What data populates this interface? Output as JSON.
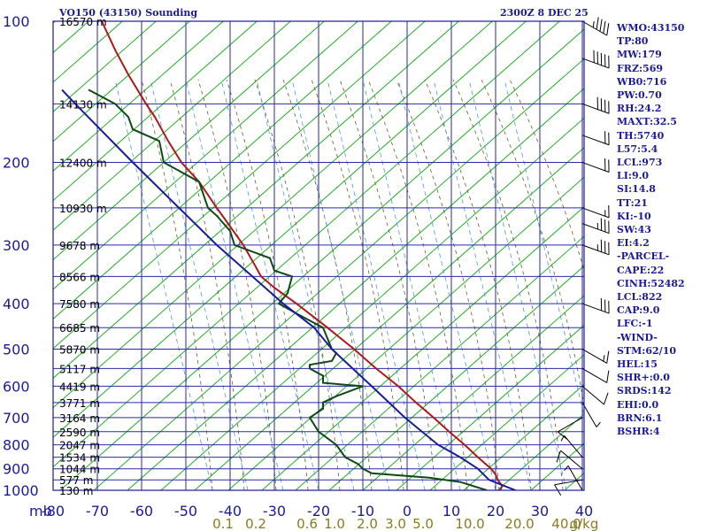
{
  "chart_data": {
    "type": "line",
    "title": "VO150 (43150) Sounding",
    "valid_time": "2300Z  8 DEC 25",
    "y_axis": {
      "unit": "mb",
      "ticks": [
        100,
        200,
        300,
        400,
        500,
        600,
        700,
        800,
        900,
        1000
      ],
      "scale": "log",
      "range": [
        100,
        1000
      ]
    },
    "x_axis": {
      "ticks": [
        -80,
        -70,
        -60,
        -50,
        -40,
        -30,
        -20,
        -10,
        0,
        10,
        20,
        30,
        40
      ],
      "range": [
        -80,
        40
      ]
    },
    "height_labels": [
      {
        "p": 100,
        "text": "16570 m"
      },
      {
        "p": 150,
        "text": "14130 m"
      },
      {
        "p": 200,
        "text": "12400 m"
      },
      {
        "p": 250,
        "text": "10930 m"
      },
      {
        "p": 300,
        "text": "9678 m"
      },
      {
        "p": 350,
        "text": "8566 m"
      },
      {
        "p": 400,
        "text": "7580 m"
      },
      {
        "p": 450,
        "text": "6685 m"
      },
      {
        "p": 500,
        "text": "5870 m"
      },
      {
        "p": 550,
        "text": "5117 m"
      },
      {
        "p": 600,
        "text": "4419 m"
      },
      {
        "p": 650,
        "text": "3771 m"
      },
      {
        "p": 700,
        "text": "3164 m"
      },
      {
        "p": 750,
        "text": "2590 m"
      },
      {
        "p": 800,
        "text": "2047 m"
      },
      {
        "p": 850,
        "text": "1534 m"
      },
      {
        "p": 900,
        "text": "1044 m"
      },
      {
        "p": 950,
        "text": "577 m"
      },
      {
        "p": 1000,
        "text": "130 m"
      }
    ],
    "mixing_ratio_labels": [
      "0.1",
      "0.2",
      "0.6",
      "1.0",
      "2.0",
      "3.0",
      "5.0",
      "10.0",
      "20.0",
      "40.0",
      "g/kg"
    ],
    "series": [
      {
        "kind": "temperature",
        "color": "#b01818",
        "points": [
          [
            1000,
            21
          ],
          [
            980,
            21.5
          ],
          [
            950,
            20.5
          ],
          [
            925,
            20
          ],
          [
            900,
            19
          ],
          [
            850,
            16
          ],
          [
            800,
            13
          ],
          [
            750,
            9.5
          ],
          [
            700,
            6
          ],
          [
            650,
            2
          ],
          [
            600,
            -2
          ],
          [
            550,
            -7
          ],
          [
            500,
            -12
          ],
          [
            450,
            -18
          ],
          [
            400,
            -25
          ],
          [
            370,
            -30
          ],
          [
            350,
            -33
          ],
          [
            330,
            -34.5
          ],
          [
            300,
            -37
          ],
          [
            250,
            -43
          ],
          [
            220,
            -47
          ],
          [
            200,
            -51
          ],
          [
            180,
            -54
          ],
          [
            160,
            -57
          ],
          [
            150,
            -59
          ],
          [
            130,
            -63
          ],
          [
            115,
            -66
          ],
          [
            100,
            -69
          ]
        ]
      },
      {
        "kind": "dewpoint",
        "color": "#0e4a12",
        "points": [
          [
            1000,
            18
          ],
          [
            960,
            12
          ],
          [
            940,
            5
          ],
          [
            920,
            -8
          ],
          [
            900,
            -10
          ],
          [
            880,
            -11
          ],
          [
            860,
            -13
          ],
          [
            850,
            -14
          ],
          [
            800,
            -16
          ],
          [
            750,
            -20
          ],
          [
            700,
            -22
          ],
          [
            670,
            -19
          ],
          [
            650,
            -19
          ],
          [
            630,
            -16
          ],
          [
            610,
            -12
          ],
          [
            600,
            -10
          ],
          [
            590,
            -19
          ],
          [
            570,
            -19
          ],
          [
            550,
            -22
          ],
          [
            540,
            -22
          ],
          [
            530,
            -17
          ],
          [
            510,
            -16
          ],
          [
            500,
            -17
          ],
          [
            450,
            -19
          ],
          [
            420,
            -25
          ],
          [
            400,
            -29
          ],
          [
            380,
            -27
          ],
          [
            350,
            -26
          ],
          [
            340,
            -30
          ],
          [
            320,
            -31
          ],
          [
            300,
            -39
          ],
          [
            280,
            -40
          ],
          [
            260,
            -43
          ],
          [
            250,
            -45
          ],
          [
            220,
            -47
          ],
          [
            200,
            -55
          ],
          [
            180,
            -56
          ],
          [
            170,
            -62
          ],
          [
            160,
            -63
          ],
          [
            150,
            -66
          ],
          [
            140,
            -72
          ]
        ]
      },
      {
        "kind": "parcel",
        "color": "#1a1a9c",
        "points": [
          [
            1000,
            24.5
          ],
          [
            950,
            18.5
          ],
          [
            900,
            16
          ],
          [
            850,
            12
          ],
          [
            800,
            7
          ],
          [
            700,
            -0.5
          ],
          [
            600,
            -8
          ],
          [
            500,
            -17
          ],
          [
            450,
            -21
          ],
          [
            400,
            -28
          ],
          [
            300,
            -43
          ],
          [
            200,
            -62
          ],
          [
            150,
            -75
          ],
          [
            140,
            -78
          ]
        ]
      }
    ],
    "wind_barbs": [
      {
        "p": 100,
        "dir": 300,
        "kt": 45
      },
      {
        "p": 120,
        "dir": 290,
        "kt": 50
      },
      {
        "p": 150,
        "dir": 290,
        "kt": 40
      },
      {
        "p": 175,
        "dir": 290,
        "kt": 20
      },
      {
        "p": 200,
        "dir": 290,
        "kt": 20
      },
      {
        "p": 250,
        "dir": 290,
        "kt": 15
      },
      {
        "p": 270,
        "dir": 290,
        "kt": 35
      },
      {
        "p": 300,
        "dir": 290,
        "kt": 35
      },
      {
        "p": 400,
        "dir": 290,
        "kt": 30
      },
      {
        "p": 500,
        "dir": 300,
        "kt": 15
      },
      {
        "p": 550,
        "dir": 300,
        "kt": 10
      },
      {
        "p": 600,
        "dir": 310,
        "kt": 10
      },
      {
        "p": 650,
        "dir": 330,
        "kt": 5
      },
      {
        "p": 700,
        "dir": 60,
        "kt": 10
      },
      {
        "p": 850,
        "dir": 140,
        "kt": 5
      },
      {
        "p": 900,
        "dir": 130,
        "kt": 10
      },
      {
        "p": 950,
        "dir": 80,
        "kt": 10
      },
      {
        "p": 1000,
        "dir": 150,
        "kt": 5
      }
    ],
    "colors": {
      "frame": "#1a1a9c",
      "isotherms": "#2a2aa8",
      "dry_adiabats": "#20b020",
      "moist_adiabats": "#6a5a2a",
      "mixing_ratio": "#4a9ad8",
      "axis_labels": "#1a1a9c",
      "mixing_labels": "#8a7a20"
    }
  },
  "indices": [
    "WMO:43150",
    "TP:80",
    "MW:179",
    "FRZ:569",
    "WB0:716",
    "PW:0.70",
    "RH:24.2",
    "MAXT:32.5",
    "TH:5740",
    "L57:5.4",
    "LCL:973",
    "LI:9.0",
    "SI:14.8",
    "TT:21",
    "KI:-10",
    "SW:43",
    "EI:4.2",
    "-PARCEL-",
    "CAPE:22",
    "CINH:52482",
    "LCL:822",
    "CAP:9.0",
    "LFC:-1",
    "-WIND-",
    "STM:62/10",
    "HEL:15",
    "SHR+:0.0",
    "SRDS:142",
    "EHI:0.0",
    "BRN:6.1",
    "BSHR:4"
  ]
}
